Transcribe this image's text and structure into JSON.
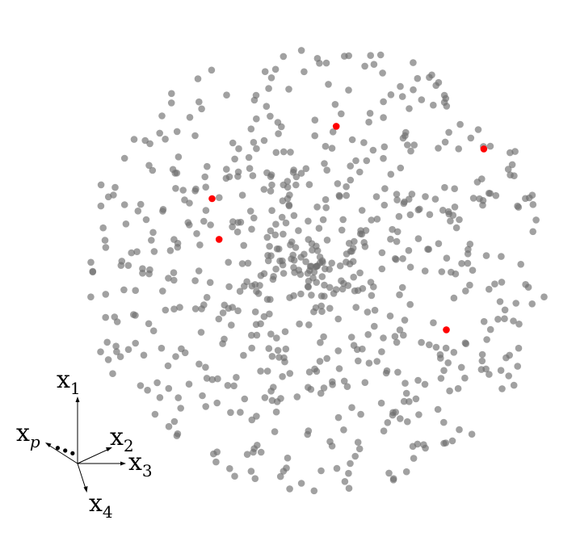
{
  "chart_data": {
    "type": "scatter",
    "title": "",
    "description_text": "",
    "point_color": "#6e6e6e",
    "highlight_color": "#ff0000",
    "gray_points": 700,
    "highlighted_points": [
      {
        "x": 0.08,
        "y": 0.62
      },
      {
        "x": -0.45,
        "y": 0.3
      },
      {
        "x": 0.71,
        "y": 0.52
      },
      {
        "x": -0.42,
        "y": 0.12
      },
      {
        "x": 0.55,
        "y": -0.28
      }
    ],
    "axes": {
      "labels": [
        {
          "base": "x",
          "sub": "1",
          "italic_sub": false
        },
        {
          "base": "x",
          "sub": "2",
          "italic_sub": false
        },
        {
          "base": "x",
          "sub": "3",
          "italic_sub": false
        },
        {
          "base": "x",
          "sub": "4",
          "italic_sub": false
        },
        {
          "base": "x",
          "sub": "p",
          "italic_sub": true
        }
      ],
      "ellipsis": "..."
    }
  }
}
